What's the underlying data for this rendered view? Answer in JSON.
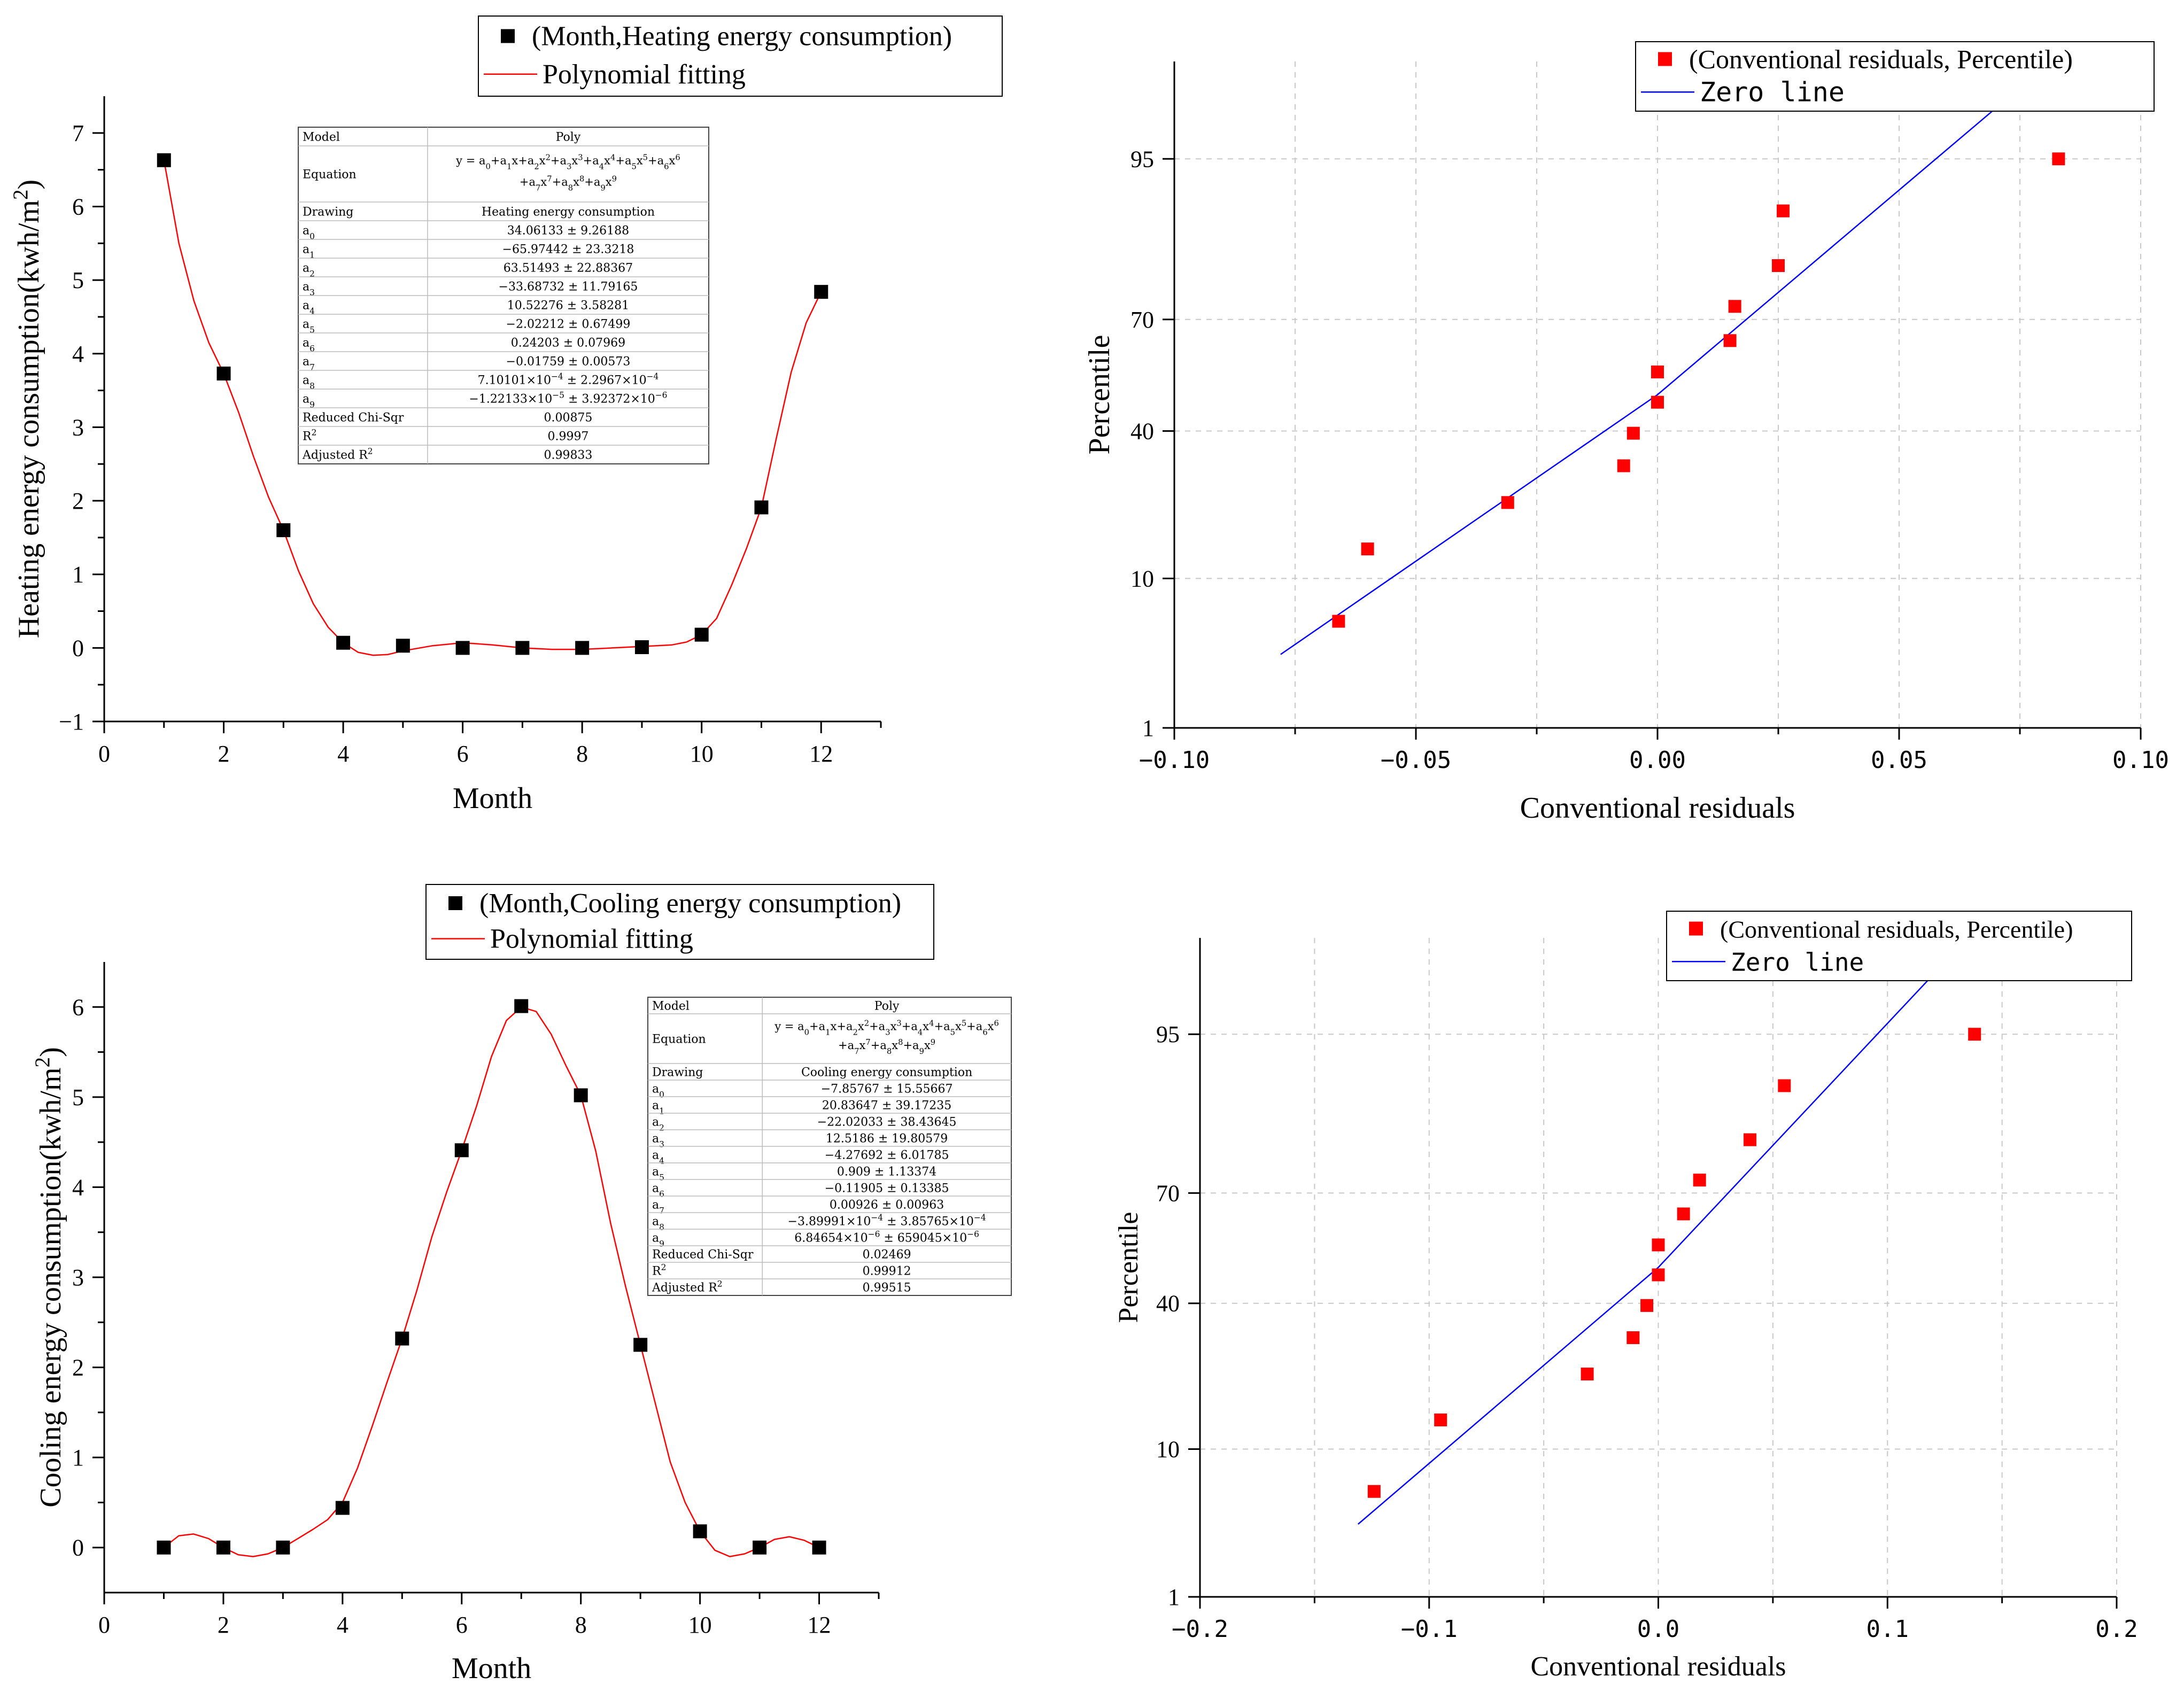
{
  "colors": {
    "scatter_square": "#000000",
    "fit_line": "#ff0000",
    "qq_marker": "#ff0000",
    "zero_line": "#0000ff",
    "grid": "#c8c8c8"
  },
  "chart_data": [
    {
      "id": "heating",
      "type": "scatter",
      "title": "",
      "xlabel": "Month",
      "ylabel": "Heating energy consumption(kwh/m2)",
      "xlim": [
        0,
        13
      ],
      "ylim": [
        -1,
        7.5
      ],
      "xticks": [
        "0",
        "2",
        "4",
        "6",
        "8",
        "10",
        "12"
      ],
      "yticks": [
        "-1",
        "0",
        "1",
        "2",
        "3",
        "4",
        "5",
        "6",
        "7"
      ],
      "series": [
        {
          "name": "(Month,Heating energy consumption)",
          "marker": "square",
          "x": [
            1,
            2,
            3,
            4,
            5,
            6,
            7,
            8,
            9,
            10,
            11,
            12
          ],
          "y": [
            6.63,
            3.73,
            1.6,
            0.07,
            0.03,
            0.0,
            0.0,
            0.0,
            0.01,
            0.18,
            1.91,
            4.84
          ]
        },
        {
          "name": "Polynomial fitting",
          "marker": "line",
          "x": [
            1,
            1.25,
            1.5,
            1.75,
            2,
            2.25,
            2.5,
            2.75,
            3,
            3.25,
            3.5,
            3.75,
            4,
            4.25,
            4.5,
            4.75,
            5,
            5.5,
            6,
            6.5,
            7,
            7.5,
            8,
            8.5,
            9,
            9.25,
            9.5,
            9.75,
            10,
            10.25,
            10.5,
            10.75,
            11,
            11.25,
            11.5,
            11.75,
            12
          ],
          "y": [
            6.63,
            5.5,
            4.72,
            4.15,
            3.73,
            3.2,
            2.6,
            2.05,
            1.6,
            1.05,
            0.6,
            0.28,
            0.07,
            -0.06,
            -0.1,
            -0.09,
            -0.04,
            0.03,
            0.07,
            0.04,
            0.0,
            -0.02,
            -0.02,
            0.0,
            0.02,
            0.03,
            0.04,
            0.08,
            0.18,
            0.4,
            0.85,
            1.35,
            1.91,
            2.85,
            3.75,
            4.42,
            4.84
          ]
        }
      ],
      "legend": {
        "entries": [
          "(Month,Heating energy consumption)",
          "Polynomial fitting"
        ],
        "position": "top-right"
      },
      "fit_table": {
        "rows": [
          {
            "label": "Model",
            "value": "Poly"
          },
          {
            "label": "Equation",
            "value": "y = a0+a1x+a2x2+a3x3+a4x4+a5x5+a6x6+a7x7+a8x8+a9x9"
          },
          {
            "label": "Drawing",
            "value": "Heating energy consumption"
          },
          {
            "label": "a0",
            "value": "34.06133 ± 9.26188"
          },
          {
            "label": "a1",
            "value": "-65.97442 ± 23.3218"
          },
          {
            "label": "a2",
            "value": "63.51493 ± 22.88367"
          },
          {
            "label": "a3",
            "value": "-33.68732 ± 11.79165"
          },
          {
            "label": "a4",
            "value": "10.52276 ± 3.58281"
          },
          {
            "label": "a5",
            "value": "-2.02212 ± 0.67499"
          },
          {
            "label": "a6",
            "value": "0.24203 ± 0.07969"
          },
          {
            "label": "a7",
            "value": "-0.01759 ± 0.00573"
          },
          {
            "label": "a8",
            "value": "7.10101×10-4 ± 2.2967×10-4"
          },
          {
            "label": "a9",
            "value": "-1.22133×10-5 ± 3.92372×10-6"
          },
          {
            "label": "Reduced Chi-Sqr",
            "value": "0.00875"
          },
          {
            "label": "R2",
            "value": "0.9997"
          },
          {
            "label": "Adjusted R2",
            "value": "0.99833"
          }
        ]
      }
    },
    {
      "id": "heating-qq",
      "type": "scatter",
      "title": "",
      "xlabel": "Conventional residuals",
      "ylabel": "Percentile",
      "xlim": [
        -0.1,
        0.1
      ],
      "ylim": [
        1,
        99
      ],
      "xticks": [
        "-0.10",
        "-0.05",
        "0.00",
        "0.05",
        "0.10"
      ],
      "yticks": [
        "1",
        "10",
        "40",
        "70",
        "95"
      ],
      "series": [
        {
          "name": "(Conventional residuals, Percentile)",
          "marker": "square",
          "x": [
            -0.066,
            -0.06,
            -0.031,
            -0.007,
            -0.005,
            0.0,
            0.0,
            0.015,
            0.016,
            0.025,
            0.026,
            0.083
          ],
          "y": [
            5.7,
            14.1,
            22.6,
            31.0,
            39.4,
            47.9,
            56.3,
            64.7,
            73.1,
            81.6,
            90.0,
            95.0
          ]
        },
        {
          "name": "Zero line",
          "marker": "line",
          "x": [
            -0.078,
            0.0,
            0.079
          ],
          "y": [
            3.5,
            50,
            98.8
          ]
        }
      ],
      "legend": {
        "entries": [
          "(Conventional residuals, Percentile)",
          "Zero line"
        ],
        "position": "top-right"
      }
    },
    {
      "id": "cooling",
      "type": "scatter",
      "title": "",
      "xlabel": "Month",
      "ylabel": "Cooling energy consumption(kwh/m2)",
      "xlim": [
        0,
        13
      ],
      "ylim": [
        -0.5,
        6.5
      ],
      "xticks": [
        "0",
        "2",
        "4",
        "6",
        "8",
        "10",
        "12"
      ],
      "yticks": [
        "0",
        "1",
        "2",
        "3",
        "4",
        "5",
        "6"
      ],
      "series": [
        {
          "name": "(Month,Cooling energy consumption)",
          "marker": "square",
          "x": [
            1,
            2,
            3,
            4,
            5,
            6,
            7,
            8,
            9,
            10,
            11,
            12
          ],
          "y": [
            0.0,
            0.0,
            0.0,
            0.44,
            2.32,
            4.41,
            6.01,
            5.02,
            2.25,
            0.18,
            0.0,
            0.0
          ]
        },
        {
          "name": "Polynomial fitting",
          "marker": "line",
          "x": [
            1,
            1.25,
            1.5,
            1.75,
            2,
            2.25,
            2.5,
            2.75,
            3,
            3.25,
            3.5,
            3.75,
            4,
            4.25,
            4.5,
            4.75,
            5,
            5.25,
            5.5,
            5.75,
            6,
            6.25,
            6.5,
            6.75,
            7,
            7.25,
            7.5,
            7.75,
            8,
            8.25,
            8.5,
            8.75,
            9,
            9.25,
            9.5,
            9.75,
            10,
            10.25,
            10.5,
            10.75,
            11,
            11.25,
            11.5,
            11.75,
            12
          ],
          "y": [
            0.0,
            0.13,
            0.15,
            0.1,
            0.0,
            -0.08,
            -0.1,
            -0.07,
            0.0,
            0.1,
            0.2,
            0.31,
            0.5,
            0.88,
            1.35,
            1.84,
            2.32,
            2.86,
            3.45,
            3.95,
            4.41,
            4.9,
            5.45,
            5.85,
            6.0,
            5.95,
            5.7,
            5.35,
            5.02,
            4.4,
            3.6,
            2.9,
            2.25,
            1.6,
            0.95,
            0.5,
            0.18,
            -0.03,
            -0.1,
            -0.07,
            0.0,
            0.09,
            0.12,
            0.08,
            0.0
          ]
        }
      ],
      "legend": {
        "entries": [
          "(Month,Cooling energy consumption)",
          "Polynomial fitting"
        ],
        "position": "top-right"
      },
      "fit_table": {
        "rows": [
          {
            "label": "Model",
            "value": "Poly"
          },
          {
            "label": "Equation",
            "value": "y = a0+a1x+a2x2+a3x3+a4x4+a5x5+a6x6+a7x7+a8x8+a9x9"
          },
          {
            "label": "Drawing",
            "value": "Cooling energy consumption"
          },
          {
            "label": "a0",
            "value": "-7.85767 ± 15.55667"
          },
          {
            "label": "a1",
            "value": "20.83647 ± 39.17235"
          },
          {
            "label": "a2",
            "value": "-22.02033 ± 38.43645"
          },
          {
            "label": "a3",
            "value": "12.5186 ± 19.80579"
          },
          {
            "label": "a4",
            "value": "-4.27692 ± 6.01785"
          },
          {
            "label": "a5",
            "value": "0.909 ± 1.13374"
          },
          {
            "label": "a6",
            "value": "-0.11905 ± 0.13385"
          },
          {
            "label": "a7",
            "value": "0.00926 ± 0.00963"
          },
          {
            "label": "a8",
            "value": "-3.89991×10-4 ± 3.85765×10-4"
          },
          {
            "label": "a9",
            "value": "6.84654×10-6 ± 659045×10-6"
          },
          {
            "label": "Reduced Chi-Sqr",
            "value": "0.02469"
          },
          {
            "label": "R2",
            "value": "0.99912"
          },
          {
            "label": "Adjusted R2",
            "value": "0.99515"
          }
        ]
      }
    },
    {
      "id": "cooling-qq",
      "type": "scatter",
      "title": "",
      "xlabel": "Conventional residuals",
      "ylabel": "Percentile",
      "xlim": [
        -0.2,
        0.2
      ],
      "ylim": [
        1,
        99
      ],
      "xticks": [
        "-0.2",
        "-0.1",
        "0.0",
        "0.1",
        "0.2"
      ],
      "yticks": [
        "1",
        "10",
        "40",
        "70",
        "95"
      ],
      "series": [
        {
          "name": "(Conventional residuals, Percentile)",
          "marker": "square",
          "x": [
            -0.124,
            -0.095,
            -0.031,
            -0.011,
            -0.005,
            0.0,
            0.0,
            0.011,
            0.018,
            0.04,
            0.055,
            0.138
          ],
          "y": [
            5.7,
            14.1,
            22.6,
            31.0,
            39.4,
            47.9,
            56.3,
            64.7,
            73.1,
            81.6,
            90.0,
            95.0
          ]
        },
        {
          "name": "Zero line",
          "marker": "line",
          "x": [
            -0.131,
            0.0,
            0.131
          ],
          "y": [
            3.5,
            50,
            98.8
          ]
        }
      ],
      "legend": {
        "entries": [
          "(Conventional residuals, Percentile)",
          "Zero line"
        ],
        "position": "top-right"
      }
    }
  ]
}
